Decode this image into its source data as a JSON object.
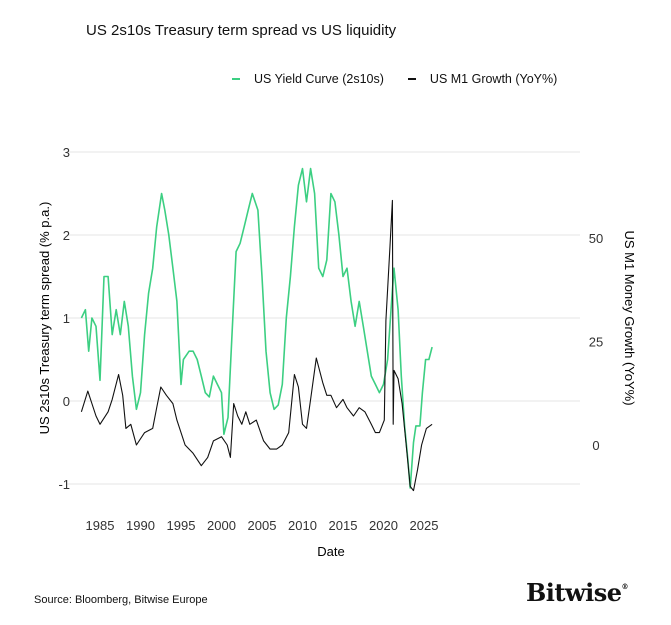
{
  "chart_data": {
    "type": "line",
    "title": "US 2s10s Treasury term spread vs US liquidity",
    "xlabel": "Date",
    "ylabel_left": "US 2s10s Treasury term spread (% p.a.)",
    "ylabel_right": "US M1 Money Growth (YoY%)",
    "x_ticks": [
      "1985",
      "1990",
      "1995",
      "2000",
      "2005",
      "2010",
      "2015",
      "2020",
      "2025"
    ],
    "y_left_ticks": [
      "3",
      "2",
      "1",
      "0",
      "-1"
    ],
    "y_right_ticks": [
      "50",
      "25",
      "0"
    ],
    "ylim_left": [
      -1,
      3
    ],
    "ylim_right": [
      -11,
      60
    ],
    "xlim": [
      1982.7,
      2026.2
    ],
    "grid": true,
    "legend_position": "top-right",
    "colors": {
      "yield_curve": "#3ccf82",
      "m1": "#111111"
    },
    "series": [
      {
        "name": "US Yield Curve (2s10s)",
        "axis": "left",
        "x": [
          1982.7,
          1983.2,
          1983.6,
          1984,
          1984.5,
          1985,
          1985.5,
          1986,
          1986.5,
          1987,
          1987.5,
          1988,
          1988.5,
          1989,
          1989.5,
          1990,
          1990.5,
          1991,
          1991.5,
          1992,
          1992.6,
          1993,
          1993.5,
          1994,
          1994.5,
          1995,
          1995.3,
          1996,
          1996.5,
          1997,
          1997.5,
          1998,
          1998.5,
          1999,
          1999.5,
          2000,
          2000.3,
          2000.8,
          2001.3,
          2001.8,
          2002.3,
          2002.8,
          2003.3,
          2003.8,
          2004.5,
          2005,
          2005.5,
          2006,
          2006.5,
          2007,
          2007.5,
          2008,
          2008.5,
          2009,
          2009.5,
          2010,
          2010.5,
          2011,
          2011.5,
          2012,
          2012.5,
          2013,
          2013.5,
          2014,
          2014.5,
          2015,
          2015.5,
          2016,
          2016.5,
          2017,
          2017.5,
          2018,
          2018.5,
          2019,
          2019.5,
          2020,
          2020.5,
          2021,
          2021.3,
          2021.8,
          2022.2,
          2022.6,
          2023,
          2023.3,
          2023.7,
          2024,
          2024.5,
          2024.8,
          2025.2,
          2025.6,
          2026
        ],
        "y": [
          1.0,
          1.1,
          0.6,
          1.0,
          0.9,
          0.25,
          1.5,
          1.5,
          0.8,
          1.1,
          0.8,
          1.2,
          0.9,
          0.3,
          -0.1,
          0.1,
          0.8,
          1.3,
          1.6,
          2.1,
          2.5,
          2.3,
          2.0,
          1.6,
          1.2,
          0.2,
          0.5,
          0.6,
          0.6,
          0.5,
          0.3,
          0.1,
          0.05,
          0.3,
          0.2,
          0.1,
          -0.4,
          -0.2,
          0.8,
          1.8,
          1.9,
          2.1,
          2.3,
          2.5,
          2.3,
          1.5,
          0.6,
          0.1,
          -0.1,
          -0.05,
          0.2,
          1.0,
          1.5,
          2.1,
          2.6,
          2.8,
          2.4,
          2.8,
          2.5,
          1.6,
          1.5,
          1.7,
          2.5,
          2.4,
          2.0,
          1.5,
          1.6,
          1.2,
          0.9,
          1.2,
          0.9,
          0.6,
          0.3,
          0.2,
          0.1,
          0.2,
          0.5,
          1.2,
          1.6,
          1.1,
          0.3,
          -0.3,
          -0.7,
          -1.05,
          -0.5,
          -0.3,
          -0.3,
          0.1,
          0.5,
          0.5,
          0.65
        ]
      },
      {
        "name": "US M1 Growth (YoY%)",
        "axis": "right",
        "x": [
          1982.7,
          1983.5,
          1984.5,
          1985,
          1986,
          1986.5,
          1987.3,
          1987.8,
          1988.2,
          1988.8,
          1989.5,
          1990.5,
          1991.5,
          1992,
          1992.5,
          1993.2,
          1994,
          1994.5,
          1995.5,
          1996.5,
          1997.5,
          1998.3,
          1999,
          2000,
          2000.7,
          2001.1,
          2001.5,
          2002,
          2002.5,
          2003,
          2003.5,
          2004.3,
          2005.2,
          2006,
          2006.8,
          2007.5,
          2008.3,
          2009,
          2009.5,
          2010,
          2010.5,
          2011,
          2011.7,
          2012.5,
          2013,
          2013.5,
          2014.2,
          2015,
          2015.5,
          2016.3,
          2017,
          2017.7,
          2018.5,
          2019,
          2019.5,
          2020.1,
          2020.3,
          2020.8,
          2021.1,
          2021.2,
          2021.3,
          2021.8,
          2022.3,
          2022.8,
          2023.3,
          2023.7,
          2024.2,
          2024.7,
          2025.3,
          2026
        ],
        "y": [
          8,
          13,
          7,
          5,
          8,
          11,
          17,
          12,
          4,
          5,
          0,
          3,
          4,
          9,
          14,
          12,
          10,
          6,
          0,
          -2,
          -5,
          -3,
          1,
          2,
          0,
          -3,
          10,
          7,
          5,
          8,
          5,
          6,
          1,
          -1,
          -1,
          0,
          3,
          17,
          14,
          5,
          4,
          11,
          21,
          15,
          12,
          12,
          9,
          11,
          9,
          7,
          9,
          8,
          5,
          3,
          3,
          6,
          30,
          48,
          59,
          5,
          18,
          16,
          10,
          0,
          -10,
          -11,
          -6,
          0,
          4,
          5
        ]
      }
    ]
  },
  "footer": {
    "source": "Source: Bloomberg, Bitwise Europe",
    "logo": "Bitwise"
  }
}
